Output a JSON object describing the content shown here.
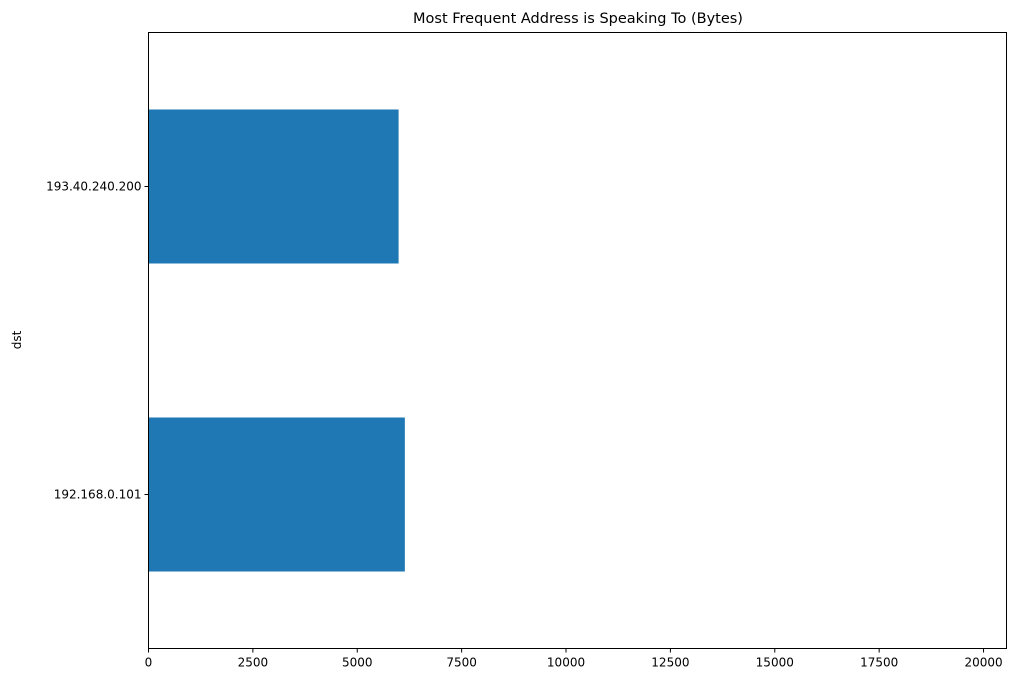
{
  "chart_data": {
    "type": "bar",
    "orientation": "horizontal",
    "title": "Most Frequent Address is Speaking To (Bytes)",
    "xlabel": "",
    "ylabel": "dst",
    "categories": [
      "193.40.240.200",
      "192.168.0.101"
    ],
    "values": [
      5990,
      6140
    ],
    "xlim": [
      0,
      20550
    ],
    "xticks": [
      0,
      2500,
      5000,
      7500,
      10000,
      12500,
      15000,
      17500,
      20000
    ],
    "xtick_labels": [
      "0",
      "2500",
      "5000",
      "7500",
      "10000",
      "12500",
      "15000",
      "17500",
      "20000"
    ],
    "grid": false,
    "legend": "none",
    "bar_color": "#1f77b4"
  }
}
